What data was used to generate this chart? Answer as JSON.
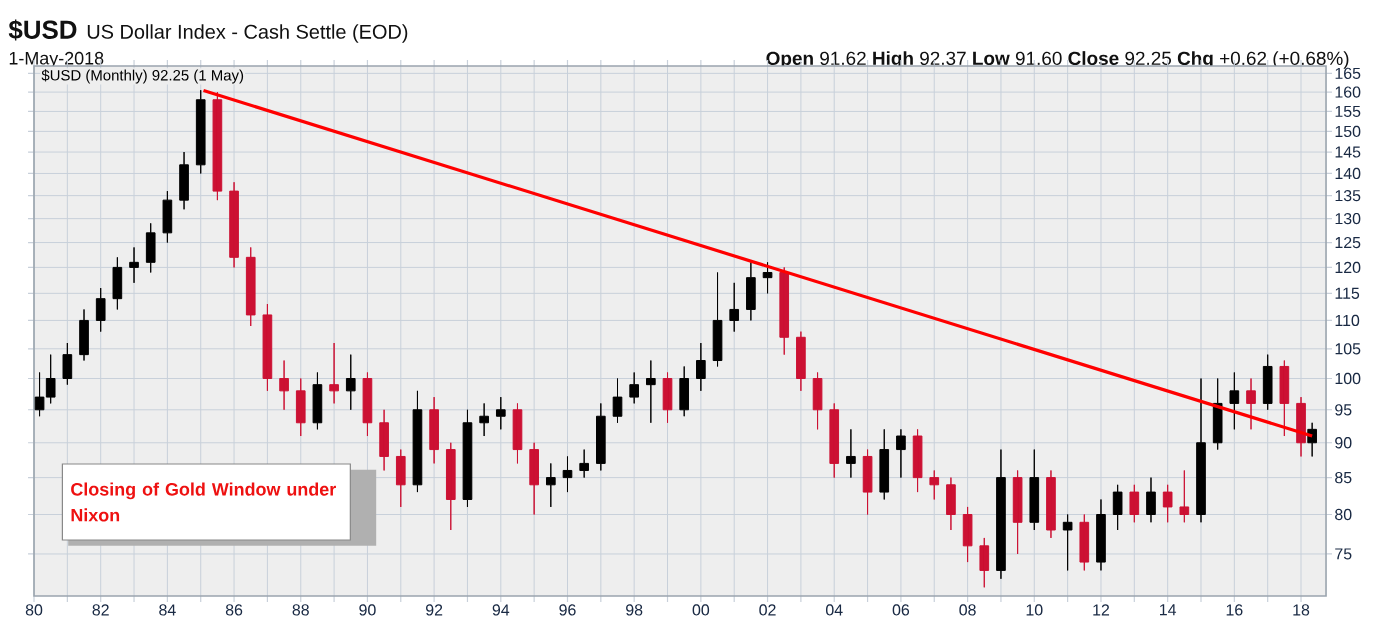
{
  "chart_data": {
    "type": "candlestick",
    "title": "$USD",
    "subtitle": "US Dollar Index - Cash Settle (EOD)",
    "annotations": [
      "1-May-2018",
      "**Open** 91.62  **High** 92.37  **Low** 91.60  **Close** 92.25  **Chg** +0.62 (+0.68%)",
      "Closing of Gold Window under Nixon"
    ],
    "series": [
      {
        "name": "$USD (Monthly) 92.25 (1 May)",
        "x": [
          "1980-03",
          "1980-07",
          "1981-01",
          "1981-07",
          "1982-01",
          "1982-07",
          "1983-01",
          "1983-07",
          "1984-01",
          "1984-07",
          "1985-01",
          "1985-07",
          "1986-01",
          "1986-07",
          "1987-01",
          "1987-07",
          "1988-01",
          "1988-07",
          "1989-01",
          "1989-07",
          "1990-01",
          "1990-07",
          "1991-01",
          "1991-07",
          "1992-01",
          "1992-07",
          "1993-01",
          "1993-07",
          "1994-01",
          "1994-07",
          "1995-01",
          "1995-07",
          "1996-01",
          "1996-07",
          "1997-01",
          "1997-07",
          "1998-01",
          "1998-07",
          "1999-01",
          "1999-07",
          "2000-01",
          "2000-07",
          "2001-01",
          "2001-07",
          "2002-01",
          "2002-07",
          "2003-01",
          "2003-07",
          "2004-01",
          "2004-07",
          "2005-01",
          "2005-07",
          "2006-01",
          "2006-07",
          "2007-01",
          "2007-07",
          "2008-01",
          "2008-07",
          "2009-01",
          "2009-07",
          "2010-01",
          "2010-07",
          "2011-01",
          "2011-07",
          "2012-01",
          "2012-07",
          "2013-01",
          "2013-07",
          "2014-01",
          "2014-07",
          "2015-01",
          "2015-07",
          "2016-01",
          "2016-07",
          "2017-01",
          "2017-07",
          "2018-01",
          "2018-05"
        ],
        "ohlc": [
          [
            95,
            101,
            94,
            97
          ],
          [
            97,
            104,
            96,
            100
          ],
          [
            100,
            106,
            99,
            104
          ],
          [
            104,
            112,
            103,
            110
          ],
          [
            110,
            116,
            108,
            114
          ],
          [
            114,
            122,
            112,
            120
          ],
          [
            120,
            124,
            117,
            121
          ],
          [
            121,
            129,
            119,
            127
          ],
          [
            127,
            136,
            125,
            134
          ],
          [
            134,
            145,
            132,
            142
          ],
          [
            142,
            160.5,
            140,
            158
          ],
          [
            158,
            160,
            134,
            136
          ],
          [
            136,
            138,
            120,
            122
          ],
          [
            122,
            124,
            109,
            111
          ],
          [
            111,
            113,
            98,
            100
          ],
          [
            100,
            103,
            95,
            98
          ],
          [
            98,
            100,
            91,
            93
          ],
          [
            93,
            101,
            92,
            99
          ],
          [
            99,
            106,
            96,
            98
          ],
          [
            98,
            104,
            95,
            100
          ],
          [
            100,
            101,
            91,
            93
          ],
          [
            93,
            95,
            86,
            88
          ],
          [
            88,
            89,
            81,
            84
          ],
          [
            84,
            98,
            83,
            95
          ],
          [
            95,
            97,
            87,
            89
          ],
          [
            89,
            90,
            78,
            82
          ],
          [
            82,
            95,
            81,
            93
          ],
          [
            93,
            96,
            91,
            94
          ],
          [
            94,
            97,
            92,
            95
          ],
          [
            95,
            96,
            87,
            89
          ],
          [
            89,
            90,
            80,
            84
          ],
          [
            84,
            87,
            81,
            85
          ],
          [
            85,
            88,
            83,
            86
          ],
          [
            86,
            89,
            85,
            87
          ],
          [
            87,
            96,
            86,
            94
          ],
          [
            94,
            100,
            93,
            97
          ],
          [
            97,
            101,
            96,
            99
          ],
          [
            99,
            103,
            93,
            100
          ],
          [
            100,
            101,
            93,
            95
          ],
          [
            95,
            102,
            94,
            100
          ],
          [
            100,
            106,
            98,
            103
          ],
          [
            103,
            119,
            102,
            110
          ],
          [
            110,
            117,
            108,
            112
          ],
          [
            112,
            121,
            110,
            118
          ],
          [
            118,
            121,
            115,
            119
          ],
          [
            119,
            120,
            104,
            107
          ],
          [
            107,
            108,
            98,
            100
          ],
          [
            100,
            101,
            92,
            95
          ],
          [
            95,
            96,
            85,
            87
          ],
          [
            87,
            92,
            85,
            88
          ],
          [
            88,
            89,
            80,
            83
          ],
          [
            83,
            92,
            82,
            89
          ],
          [
            89,
            92,
            85,
            91
          ],
          [
            91,
            92,
            83,
            85
          ],
          [
            85,
            86,
            82,
            84
          ],
          [
            84,
            85,
            78,
            80
          ],
          [
            80,
            81,
            74,
            76
          ],
          [
            76,
            77,
            71,
            73
          ],
          [
            73,
            89,
            72,
            85
          ],
          [
            85,
            86,
            75,
            79
          ],
          [
            79,
            89,
            78,
            85
          ],
          [
            85,
            86,
            77,
            78
          ],
          [
            78,
            80,
            73,
            79
          ],
          [
            79,
            80,
            73,
            74
          ],
          [
            74,
            82,
            73,
            80
          ],
          [
            80,
            84,
            78,
            83
          ],
          [
            83,
            84,
            79,
            80
          ],
          [
            80,
            85,
            79,
            83
          ],
          [
            83,
            84,
            79,
            81
          ],
          [
            81,
            86,
            79,
            80
          ],
          [
            80,
            100,
            79,
            90
          ],
          [
            90,
            100,
            89,
            96
          ],
          [
            96,
            101,
            92,
            98
          ],
          [
            98,
            100,
            92,
            96
          ],
          [
            96,
            104,
            95,
            102
          ],
          [
            102,
            103,
            91,
            96
          ],
          [
            96,
            97,
            88,
            90
          ],
          [
            90,
            93,
            88,
            92
          ]
        ],
        "colors": [
          "#000000",
          "#000000",
          "#000000",
          "#000000",
          "#000000",
          "#000000",
          "#000000",
          "#000000",
          "#000000",
          "#000000",
          "#000000",
          "#cc1133",
          "#cc1133",
          "#cc1133",
          "#cc1133",
          "#cc1133",
          "#cc1133",
          "#000000",
          "#cc1133",
          "#000000",
          "#cc1133",
          "#cc1133",
          "#cc1133",
          "#000000",
          "#cc1133",
          "#cc1133",
          "#000000",
          "#000000",
          "#000000",
          "#cc1133",
          "#cc1133",
          "#000000",
          "#000000",
          "#000000",
          "#000000",
          "#000000",
          "#000000",
          "#000000",
          "#cc1133",
          "#000000",
          "#000000",
          "#000000",
          "#000000",
          "#000000",
          "#000000",
          "#cc1133",
          "#cc1133",
          "#cc1133",
          "#cc1133",
          "#000000",
          "#cc1133",
          "#000000",
          "#000000",
          "#cc1133",
          "#cc1133",
          "#cc1133",
          "#cc1133",
          "#cc1133",
          "#000000",
          "#cc1133",
          "#000000",
          "#cc1133",
          "#000000",
          "#cc1133",
          "#000000",
          "#000000",
          "#cc1133",
          "#000000",
          "#cc1133",
          "#cc1133",
          "#000000",
          "#000000",
          "#000000",
          "#cc1133",
          "#000000",
          "#cc1133",
          "#cc1133",
          "#000000"
        ]
      },
      {
        "type": "line",
        "color": "#ff0000",
        "x": [
          "1985-02",
          "2018-05"
        ],
        "values": [
          160.4,
          91
        ]
      }
    ],
    "xlim": [
      "1980",
      "2018-10"
    ],
    "xticks": [
      {
        "value": "1980",
        "label": "80"
      },
      {
        "value": "1981",
        "label": null
      },
      {
        "value": "1982",
        "label": "82"
      },
      {
        "value": "1983",
        "label": null
      },
      {
        "value": "1984",
        "label": "84"
      },
      {
        "value": "1985",
        "label": null
      },
      {
        "value": "1986",
        "label": "86"
      },
      {
        "value": "1987",
        "label": null
      },
      {
        "value": "1988",
        "label": "88"
      },
      {
        "value": "1989",
        "label": null
      },
      {
        "value": "1990",
        "label": "90"
      },
      {
        "value": "1991",
        "label": null
      },
      {
        "value": "1992",
        "label": "92"
      },
      {
        "value": "1993",
        "label": null
      },
      {
        "value": "1994",
        "label": "94"
      },
      {
        "value": "1995",
        "label": null
      },
      {
        "value": "1996",
        "label": "96"
      },
      {
        "value": "1997",
        "label": null
      },
      {
        "value": "1998",
        "label": "98"
      },
      {
        "value": "1999",
        "label": null
      },
      {
        "value": "2000",
        "label": "00"
      },
      {
        "value": "2001",
        "label": null
      },
      {
        "value": "2002",
        "label": "02"
      },
      {
        "value": "2003",
        "label": null
      },
      {
        "value": "2004",
        "label": "04"
      },
      {
        "value": "2005",
        "label": null
      },
      {
        "value": "2006",
        "label": "06"
      },
      {
        "value": "2007",
        "label": null
      },
      {
        "value": "2008",
        "label": "08"
      },
      {
        "value": "2009",
        "label": null
      },
      {
        "value": "2010",
        "label": "10"
      },
      {
        "value": "2011",
        "label": null
      },
      {
        "value": "2012",
        "label": "12"
      },
      {
        "value": "2013",
        "label": null
      },
      {
        "value": "2014",
        "label": "14"
      },
      {
        "value": "2015",
        "label": null
      },
      {
        "value": "2016",
        "label": "16"
      },
      {
        "value": "2017",
        "label": null
      },
      {
        "value": "2018",
        "label": "18"
      }
    ],
    "ylim": [
      70,
      167
    ],
    "yticks": [
      75,
      80,
      85,
      90,
      95,
      100,
      105,
      110,
      115,
      120,
      125,
      130,
      135,
      140,
      145,
      150,
      155,
      160,
      165
    ],
    "log": "y",
    "grid": true,
    "legend": "top left"
  }
}
